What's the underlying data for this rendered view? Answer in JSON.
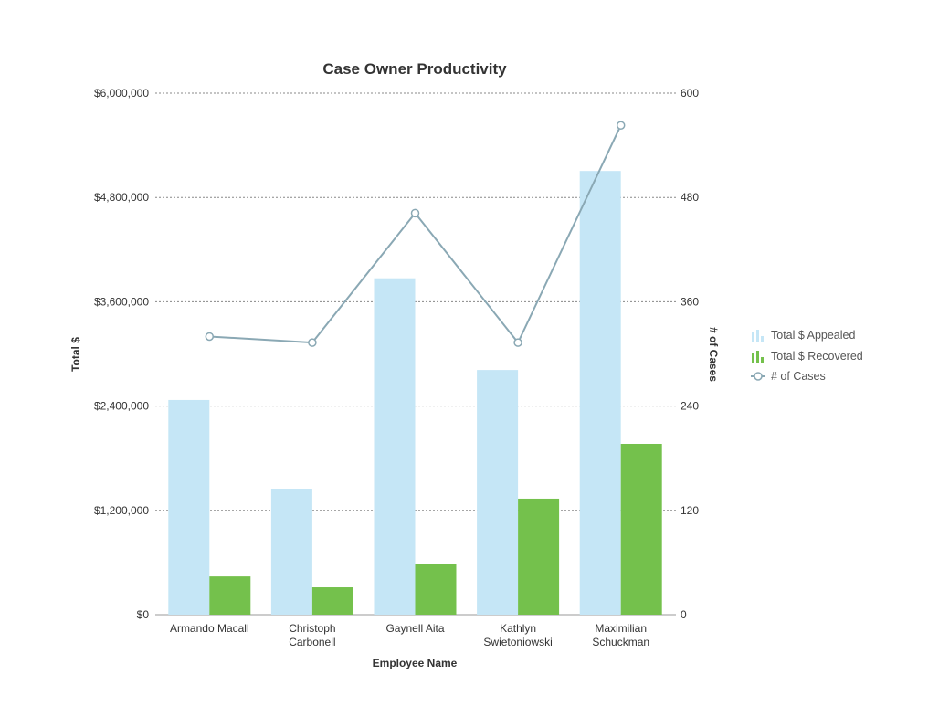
{
  "chart_data": {
    "type": "bar",
    "title": "Case Owner Productivity",
    "xlabel": "Employee Name",
    "ylabel": "Total $",
    "y2label": "# of Cases",
    "categories": [
      [
        "Armando Macall"
      ],
      [
        "Christoph",
        "Carbonell"
      ],
      [
        "Gaynell Aita"
      ],
      [
        "Kathlyn",
        "Swietoniowski"
      ],
      [
        "Maximilian",
        "Schuckman"
      ]
    ],
    "ylim": [
      0,
      6000000
    ],
    "y2lim": [
      0,
      600
    ],
    "yticks": [
      "$0",
      "$1,200,000",
      "$2,400,000",
      "$3,600,000",
      "$4,800,000",
      "$6,000,000"
    ],
    "y2ticks": [
      "0",
      "120",
      "240",
      "360",
      "480",
      "600"
    ],
    "grid": true,
    "legend_position": "right",
    "series": [
      {
        "name": "Total $ Appealed",
        "type": "bar",
        "axis": "left",
        "color": "#c5e6f6",
        "values": [
          2470000,
          1450000,
          3870000,
          2815000,
          5105000
        ]
      },
      {
        "name": "Total $ Recovered",
        "type": "bar",
        "axis": "left",
        "color": "#74c14c",
        "values": [
          440000,
          315000,
          580000,
          1335000,
          1965000
        ]
      },
      {
        "name": "# of Cases",
        "type": "line",
        "axis": "right",
        "color": "#8aa8b4",
        "values": [
          320,
          313,
          462,
          313,
          563
        ]
      }
    ]
  }
}
